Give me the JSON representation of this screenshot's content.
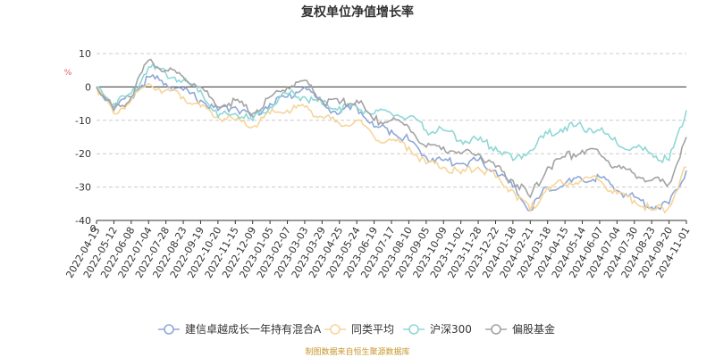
{
  "chart_data": {
    "type": "line",
    "title": "复权单位净值增长率",
    "y_unit": "%",
    "ylim": [
      -40,
      10
    ],
    "yticks": [
      10,
      0,
      -10,
      -20,
      -30,
      -40
    ],
    "grid": true,
    "legend_position": "bottom-center",
    "x": [
      "2022-04-13",
      "2022-05-12",
      "2022-06-08",
      "2022-07-04",
      "2022-07-28",
      "2022-08-23",
      "2022-09-19",
      "2022-10-20",
      "2022-11-15",
      "2022-12-09",
      "2023-01-05",
      "2023-02-07",
      "2023-03-03",
      "2023-03-29",
      "2023-04-25",
      "2023-05-24",
      "2023-06-19",
      "2023-07-17",
      "2023-08-10",
      "2023-09-05",
      "2023-10-09",
      "2023-11-02",
      "2023-11-28",
      "2023-12-22",
      "2024-01-18",
      "2024-02-21",
      "2024-03-18",
      "2024-04-15",
      "2024-05-14",
      "2024-06-07",
      "2024-07-04",
      "2024-07-30",
      "2024-08-23",
      "2024-09-20",
      "2024-11-01"
    ],
    "x_first_label": "0",
    "series": [
      {
        "name": "建信卓越成长一年持有混合A",
        "color": "#8fa8d8",
        "values": [
          0,
          -6,
          -3,
          3,
          1,
          -1,
          -4,
          -7,
          -6,
          -9,
          -5,
          -3,
          0,
          -5,
          -8,
          -6,
          -12,
          -13,
          -16,
          -21,
          -22,
          -23,
          -22,
          -25,
          -30,
          -37,
          -30,
          -29,
          -28,
          -27,
          -31,
          -33,
          -36,
          -35,
          -25
        ]
      },
      {
        "name": "同类平均",
        "color": "#f7d59a",
        "values": [
          0,
          -8,
          -4,
          1,
          -1,
          -3,
          -6,
          -9,
          -10,
          -12,
          -8,
          -7,
          -6,
          -9,
          -11,
          -10,
          -15,
          -16,
          -18,
          -23,
          -24,
          -26,
          -24,
          -27,
          -31,
          -37,
          -30,
          -29,
          -28,
          -28,
          -32,
          -34,
          -37,
          -36,
          -24
        ]
      },
      {
        "name": "沪深300",
        "color": "#8fd8d6",
        "values": [
          0,
          -5,
          -2,
          6,
          4,
          2,
          -1,
          -9,
          -8,
          -10,
          -6,
          -2,
          -3,
          -5,
          -6,
          -6,
          -8,
          -8,
          -9,
          -13,
          -13,
          -16,
          -16,
          -18,
          -22,
          -19,
          -14,
          -12,
          -12,
          -13,
          -17,
          -18,
          -20,
          -22,
          -7
        ]
      },
      {
        "name": "偏股基金",
        "color": "#a3a3a3",
        "values": [
          0,
          -7,
          -3,
          8,
          5,
          3,
          0,
          -6,
          -4,
          -8,
          -3,
          0,
          2,
          -4,
          -5,
          -4,
          -10,
          -10,
          -12,
          -18,
          -18,
          -20,
          -20,
          -24,
          -28,
          -33,
          -24,
          -21,
          -19,
          -20,
          -24,
          -26,
          -28,
          -29,
          -15
        ]
      }
    ]
  },
  "footer": "制图数据来自恒生聚源数据库"
}
